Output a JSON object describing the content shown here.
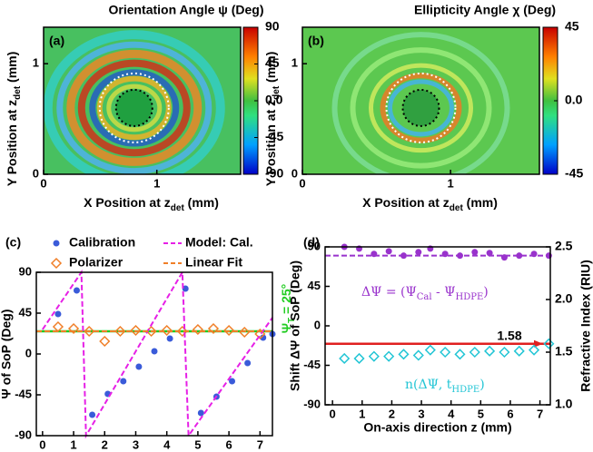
{
  "chart_data": [
    {
      "type": "heatmap",
      "panel_label": "(a)",
      "title": "Orientation Angle ψ (Deg)",
      "x_label": [
        "X Position at z",
        "det",
        " (mm)"
      ],
      "y_label": [
        "Y Position at z",
        "det",
        " (mm)"
      ],
      "xlim": [
        0,
        1.74
      ],
      "xticks": [
        0,
        1
      ],
      "ylim": [
        0,
        1.33
      ],
      "yticks": [
        0,
        1
      ],
      "colorbar": {
        "lim": [
          -90,
          90
        ],
        "ticks": [
          90,
          45,
          {
            "value": 0,
            "label": "0.0"
          },
          -45,
          -90
        ]
      }
    },
    {
      "type": "heatmap",
      "panel_label": "(b)",
      "title": "Ellipticity Angle χ (Deg)",
      "x_label": [
        "X Position at z",
        "det",
        " (mm)"
      ],
      "y_label": [
        "Y Position at z",
        "det",
        " (mm)"
      ],
      "xlim": [
        0,
        1.6
      ],
      "xticks": [
        0,
        1
      ],
      "ylim": [
        0,
        1.33
      ],
      "yticks": [
        0,
        1
      ],
      "colorbar": {
        "lim": [
          -45,
          45
        ],
        "ticks": [
          45,
          {
            "value": 0,
            "label": "0.0"
          },
          -45
        ]
      }
    },
    {
      "type": "scatter",
      "panel_label": "(c)",
      "x_label": "On-axis direction z (mm)",
      "y_label": "Ψ of SoP (Deg)",
      "xlim": [
        -0.2,
        7.4
      ],
      "xticks": [
        0,
        1,
        2,
        3,
        4,
        5,
        6,
        7
      ],
      "ylim": [
        -90,
        90
      ],
      "yticks": [
        -90,
        -45,
        0,
        45,
        90
      ],
      "series": [
        {
          "name": "Calibration",
          "color": "#3a5bd9",
          "marker": "circle",
          "x": [
            0.5,
            1.1,
            1.6,
            2.1,
            2.6,
            3.1,
            3.6,
            4.1,
            4.6,
            5.1,
            5.6,
            6.1,
            6.6,
            7.1,
            7.4
          ],
          "values": [
            44,
            70,
            -67,
            -44,
            -30,
            -14,
            3,
            17,
            72,
            -65,
            -47,
            -30,
            -10,
            18,
            22
          ]
        },
        {
          "name": "Polarizer",
          "color": "#f07f28",
          "marker": "diamond",
          "x": [
            0.5,
            1.0,
            1.5,
            2.0,
            2.5,
            3.0,
            3.5,
            4.0,
            4.5,
            5.0,
            5.5,
            6.0,
            6.5,
            7.0
          ],
          "values": [
            30,
            28,
            25,
            14,
            25,
            26,
            25,
            26,
            25,
            27,
            28,
            26,
            24,
            22
          ]
        },
        {
          "name": "Model: Cal.",
          "color": "#e620e6",
          "style": "dashed",
          "x": [
            0,
            1.25,
            1.4,
            4.5,
            4.7,
            7.4
          ],
          "values": [
            27,
            90,
            -90,
            90,
            -90,
            40
          ]
        },
        {
          "name": "Linear Fit",
          "color": "#f07f28",
          "style": "dashed",
          "x": [
            -0.2,
            7.4
          ],
          "values": [
            25,
            25
          ]
        }
      ],
      "reference": {
        "value": 25,
        "color": "#22cc22",
        "label": [
          "Ψ",
          "T",
          " = 25°"
        ]
      }
    },
    {
      "type": "scatter",
      "panel_label": "(d)",
      "x_label": "On-axis direction z (mm)",
      "y_label": "Shift ΔΨ of SoP (Deg)",
      "y2_label": "Refractive Index (RIU)",
      "xlim": [
        -0.25,
        7.35
      ],
      "xticks": [
        0,
        1,
        2,
        3,
        4,
        5,
        6,
        7
      ],
      "ylim": [
        -90,
        90
      ],
      "yticks": [
        -90,
        -45,
        0,
        45,
        90
      ],
      "y2lim": [
        1.0,
        2.5
      ],
      "y2ticks": [
        {
          "value": 1,
          "label": "1.0"
        },
        1.5,
        {
          "value": 2,
          "label": "2.0"
        },
        2.5
      ],
      "series": [
        {
          "label": [
            "ΔΨ = (Ψ",
            "Cal",
            " - Ψ",
            "HDPE",
            ")"
          ],
          "color": "#9932cc",
          "marker": "circle",
          "x": [
            0.4,
            0.9,
            1.4,
            1.9,
            2.4,
            2.9,
            3.3,
            3.8,
            4.3,
            4.8,
            5.3,
            5.8,
            6.3,
            6.8,
            7.3
          ],
          "values": [
            90,
            88,
            82,
            85,
            80,
            84,
            88,
            82,
            80,
            84,
            83,
            78,
            80,
            82,
            80
          ]
        },
        {
          "color": "#9932cc",
          "style": "dashed",
          "x": [
            -0.25,
            7.35
          ],
          "values": [
            80,
            80
          ]
        },
        {
          "label": [
            "n(ΔΨ, t",
            "HDPE",
            ")"
          ],
          "color": "#22c5d5",
          "marker": "diamond",
          "axis": "y2",
          "x": [
            0.4,
            0.9,
            1.4,
            1.9,
            2.4,
            2.9,
            3.3,
            3.8,
            4.3,
            4.8,
            5.3,
            5.8,
            6.3,
            6.8,
            7.3
          ],
          "values": [
            1.44,
            1.44,
            1.46,
            1.46,
            1.48,
            1.47,
            1.52,
            1.5,
            1.48,
            1.5,
            1.51,
            1.5,
            1.51,
            1.52,
            1.58
          ]
        }
      ],
      "reference": {
        "value": 1.58,
        "label": "1.58",
        "axis": "y2",
        "color": "#e02020"
      }
    }
  ]
}
